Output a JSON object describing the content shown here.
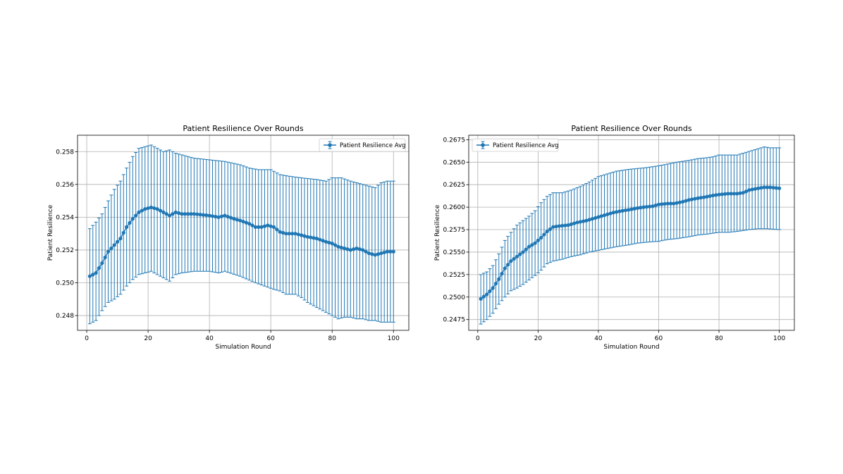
{
  "chart_data": [
    {
      "type": "line",
      "error_bars": true,
      "title": "Patient Resilience Over Rounds",
      "xlabel": "Simulation Round",
      "ylabel": "Patient Resilience",
      "xlim": [
        -3,
        105
      ],
      "ylim": [
        0.2471,
        0.259
      ],
      "xticks": [
        0,
        20,
        40,
        60,
        80,
        100
      ],
      "xtick_labels": [
        "0",
        "20",
        "40",
        "60",
        "80",
        "100"
      ],
      "yticks": [
        0.248,
        0.25,
        0.252,
        0.254,
        0.256,
        0.258
      ],
      "ytick_labels": [
        "0.248",
        "0.250",
        "0.252",
        "0.254",
        "0.256",
        "0.258"
      ],
      "grid": true,
      "legend": "upper right",
      "color": "#1f77b4",
      "series": [
        {
          "name": "Patient Resilience Avg",
          "mean_keyframes": [
            [
              1,
              0.2504
            ],
            [
              3,
              0.2506
            ],
            [
              5,
              0.2512
            ],
            [
              7,
              0.2519
            ],
            [
              9,
              0.2523
            ],
            [
              11,
              0.2527
            ],
            [
              13,
              0.2534
            ],
            [
              15,
              0.2539
            ],
            [
              17,
              0.2543
            ],
            [
              19,
              0.2545
            ],
            [
              21,
              0.2546
            ],
            [
              23,
              0.2545
            ],
            [
              25,
              0.2543
            ],
            [
              27,
              0.2541
            ],
            [
              29,
              0.2543
            ],
            [
              31,
              0.2542
            ],
            [
              35,
              0.2542
            ],
            [
              40,
              0.2541
            ],
            [
              43,
              0.254
            ],
            [
              45,
              0.2541
            ],
            [
              48,
              0.2539
            ],
            [
              50,
              0.2538
            ],
            [
              53,
              0.2536
            ],
            [
              55,
              0.2534
            ],
            [
              57,
              0.2534
            ],
            [
              59,
              0.2535
            ],
            [
              61,
              0.2534
            ],
            [
              63,
              0.2531
            ],
            [
              65,
              0.253
            ],
            [
              68,
              0.253
            ],
            [
              70,
              0.2529
            ],
            [
              72,
              0.2528
            ],
            [
              75,
              0.2527
            ],
            [
              78,
              0.2525
            ],
            [
              80,
              0.2524
            ],
            [
              82,
              0.2522
            ],
            [
              84,
              0.2521
            ],
            [
              86,
              0.252
            ],
            [
              88,
              0.2521
            ],
            [
              90,
              0.252
            ],
            [
              92,
              0.2518
            ],
            [
              94,
              0.2517
            ],
            [
              96,
              0.2518
            ],
            [
              98,
              0.2519
            ],
            [
              100,
              0.2519
            ]
          ],
          "upper_keyframes": [
            [
              1,
              0.2533
            ],
            [
              3,
              0.2537
            ],
            [
              5,
              0.2542
            ],
            [
              7,
              0.255
            ],
            [
              9,
              0.2557
            ],
            [
              11,
              0.2562
            ],
            [
              13,
              0.257
            ],
            [
              15,
              0.2577
            ],
            [
              17,
              0.2582
            ],
            [
              19,
              0.2583
            ],
            [
              21,
              0.2584
            ],
            [
              23,
              0.2582
            ],
            [
              25,
              0.258
            ],
            [
              27,
              0.2581
            ],
            [
              29,
              0.2579
            ],
            [
              31,
              0.2578
            ],
            [
              35,
              0.2576
            ],
            [
              40,
              0.2575
            ],
            [
              45,
              0.2574
            ],
            [
              50,
              0.2572
            ],
            [
              53,
              0.257
            ],
            [
              56,
              0.2569
            ],
            [
              60,
              0.2569
            ],
            [
              63,
              0.2566
            ],
            [
              66,
              0.2565
            ],
            [
              70,
              0.2564
            ],
            [
              75,
              0.2563
            ],
            [
              78,
              0.2562
            ],
            [
              80,
              0.2564
            ],
            [
              83,
              0.2564
            ],
            [
              86,
              0.2562
            ],
            [
              90,
              0.256
            ],
            [
              92,
              0.2559
            ],
            [
              94,
              0.2558
            ],
            [
              96,
              0.2561
            ],
            [
              98,
              0.2562
            ],
            [
              100,
              0.2562
            ]
          ],
          "lower_keyframes": [
            [
              1,
              0.2475
            ],
            [
              3,
              0.2477
            ],
            [
              5,
              0.2483
            ],
            [
              7,
              0.2488
            ],
            [
              9,
              0.249
            ],
            [
              11,
              0.2493
            ],
            [
              13,
              0.2498
            ],
            [
              15,
              0.2502
            ],
            [
              17,
              0.2505
            ],
            [
              19,
              0.2506
            ],
            [
              21,
              0.2507
            ],
            [
              23,
              0.2505
            ],
            [
              25,
              0.2503
            ],
            [
              27,
              0.2501
            ],
            [
              29,
              0.2505
            ],
            [
              31,
              0.2506
            ],
            [
              35,
              0.2507
            ],
            [
              40,
              0.2507
            ],
            [
              43,
              0.2506
            ],
            [
              45,
              0.2507
            ],
            [
              50,
              0.2504
            ],
            [
              55,
              0.25
            ],
            [
              58,
              0.2498
            ],
            [
              61,
              0.2496
            ],
            [
              63,
              0.2495
            ],
            [
              65,
              0.2493
            ],
            [
              68,
              0.2493
            ],
            [
              70,
              0.2491
            ],
            [
              72,
              0.2488
            ],
            [
              75,
              0.2485
            ],
            [
              78,
              0.2482
            ],
            [
              80,
              0.248
            ],
            [
              82,
              0.2478
            ],
            [
              84,
              0.2479
            ],
            [
              86,
              0.2479
            ],
            [
              88,
              0.2478
            ],
            [
              90,
              0.2478
            ],
            [
              92,
              0.2477
            ],
            [
              94,
              0.2477
            ],
            [
              96,
              0.2476
            ],
            [
              98,
              0.2476
            ],
            [
              100,
              0.2476
            ]
          ]
        }
      ]
    },
    {
      "type": "line",
      "error_bars": true,
      "title": "Patient Resilience Over Rounds",
      "xlabel": "Simulation Round",
      "ylabel": "Patient Resilience",
      "xlim": [
        -3,
        105
      ],
      "ylim": [
        0.2463,
        0.268
      ],
      "xticks": [
        0,
        20,
        40,
        60,
        80,
        100
      ],
      "xtick_labels": [
        "0",
        "20",
        "40",
        "60",
        "80",
        "100"
      ],
      "yticks": [
        0.2475,
        0.25,
        0.2525,
        0.255,
        0.2575,
        0.26,
        0.2625,
        0.265,
        0.2675
      ],
      "ytick_labels": [
        "0.2475",
        "0.2500",
        "0.2525",
        "0.2550",
        "0.2575",
        "0.2600",
        "0.2625",
        "0.2650",
        "0.2675"
      ],
      "grid": true,
      "legend": "upper left",
      "color": "#1f77b4",
      "series": [
        {
          "name": "Patient Resilience Avg",
          "mean_keyframes": [
            [
              1,
              0.2498
            ],
            [
              3,
              0.2503
            ],
            [
              5,
              0.251
            ],
            [
              7,
              0.252
            ],
            [
              9,
              0.2532
            ],
            [
              11,
              0.254
            ],
            [
              13,
              0.2545
            ],
            [
              15,
              0.255
            ],
            [
              17,
              0.2556
            ],
            [
              19,
              0.256
            ],
            [
              21,
              0.2566
            ],
            [
              23,
              0.2573
            ],
            [
              25,
              0.2578
            ],
            [
              27,
              0.2579
            ],
            [
              30,
              0.258
            ],
            [
              33,
              0.2583
            ],
            [
              36,
              0.2585
            ],
            [
              40,
              0.2589
            ],
            [
              43,
              0.2592
            ],
            [
              45,
              0.2594
            ],
            [
              48,
              0.2596
            ],
            [
              50,
              0.2597
            ],
            [
              53,
              0.2599
            ],
            [
              55,
              0.26
            ],
            [
              58,
              0.2601
            ],
            [
              60,
              0.2603
            ],
            [
              63,
              0.2604
            ],
            [
              65,
              0.2604
            ],
            [
              68,
              0.2606
            ],
            [
              70,
              0.2608
            ],
            [
              73,
              0.261
            ],
            [
              75,
              0.2611
            ],
            [
              78,
              0.2613
            ],
            [
              80,
              0.2614
            ],
            [
              83,
              0.2615
            ],
            [
              86,
              0.2615
            ],
            [
              88,
              0.2616
            ],
            [
              90,
              0.2619
            ],
            [
              93,
              0.2621
            ],
            [
              95,
              0.2622
            ],
            [
              97,
              0.2622
            ],
            [
              100,
              0.2621
            ]
          ],
          "upper_keyframes": [
            [
              1,
              0.2525
            ],
            [
              3,
              0.2528
            ],
            [
              5,
              0.2535
            ],
            [
              7,
              0.2548
            ],
            [
              9,
              0.2563
            ],
            [
              11,
              0.2572
            ],
            [
              13,
              0.258
            ],
            [
              15,
              0.2585
            ],
            [
              17,
              0.259
            ],
            [
              19,
              0.2596
            ],
            [
              21,
              0.2605
            ],
            [
              23,
              0.2612
            ],
            [
              25,
              0.2616
            ],
            [
              28,
              0.2616
            ],
            [
              31,
              0.2619
            ],
            [
              34,
              0.2623
            ],
            [
              37,
              0.2628
            ],
            [
              40,
              0.2634
            ],
            [
              43,
              0.2637
            ],
            [
              46,
              0.264
            ],
            [
              50,
              0.2642
            ],
            [
              53,
              0.2643
            ],
            [
              56,
              0.2644
            ],
            [
              60,
              0.2646
            ],
            [
              63,
              0.2648
            ],
            [
              66,
              0.265
            ],
            [
              70,
              0.2652
            ],
            [
              73,
              0.2654
            ],
            [
              76,
              0.2655
            ],
            [
              78,
              0.2656
            ],
            [
              80,
              0.2658
            ],
            [
              83,
              0.2658
            ],
            [
              86,
              0.2658
            ],
            [
              88,
              0.266
            ],
            [
              90,
              0.2662
            ],
            [
              93,
              0.2665
            ],
            [
              95,
              0.2667
            ],
            [
              97,
              0.2666
            ],
            [
              100,
              0.2666
            ]
          ],
          "lower_keyframes": [
            [
              1,
              0.247
            ],
            [
              3,
              0.2475
            ],
            [
              5,
              0.2482
            ],
            [
              7,
              0.2492
            ],
            [
              9,
              0.25
            ],
            [
              11,
              0.2507
            ],
            [
              13,
              0.251
            ],
            [
              15,
              0.2514
            ],
            [
              17,
              0.2519
            ],
            [
              19,
              0.2524
            ],
            [
              21,
              0.253
            ],
            [
              23,
              0.2537
            ],
            [
              25,
              0.254
            ],
            [
              28,
              0.2542
            ],
            [
              31,
              0.2545
            ],
            [
              34,
              0.2547
            ],
            [
              37,
              0.255
            ],
            [
              40,
              0.2552
            ],
            [
              43,
              0.2554
            ],
            [
              46,
              0.2556
            ],
            [
              50,
              0.2558
            ],
            [
              53,
              0.256
            ],
            [
              56,
              0.2561
            ],
            [
              60,
              0.2562
            ],
            [
              63,
              0.2564
            ],
            [
              66,
              0.2565
            ],
            [
              70,
              0.2567
            ],
            [
              73,
              0.2569
            ],
            [
              76,
              0.257
            ],
            [
              80,
              0.2572
            ],
            [
              83,
              0.2572
            ],
            [
              86,
              0.2573
            ],
            [
              90,
              0.2575
            ],
            [
              93,
              0.2576
            ],
            [
              96,
              0.2576
            ],
            [
              100,
              0.2575
            ]
          ]
        }
      ]
    }
  ]
}
